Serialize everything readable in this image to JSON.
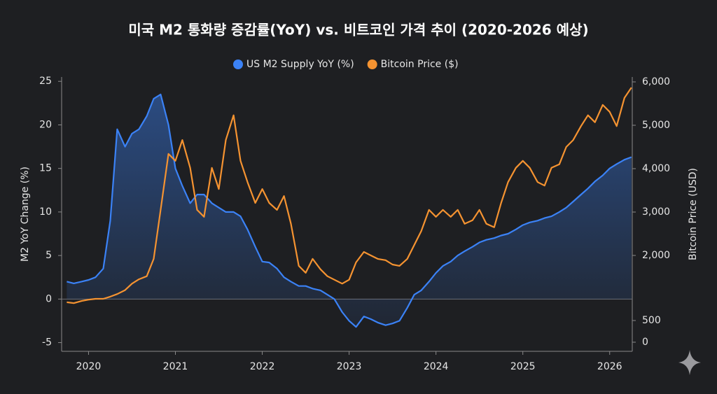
{
  "chart_data": {
    "type": "line",
    "title": "미국 M2 통화량 증감률(YoY) vs. 비트코인 가격 추이 (2020-2026 예상)",
    "ylabel": "M2 YoY Change (%)",
    "y2label": "Bitcoin Price (USD)",
    "legend": "top",
    "x": [
      2019.75,
      2019.83,
      2019.92,
      2020.0,
      2020.08,
      2020.17,
      2020.25,
      2020.33,
      2020.42,
      2020.5,
      2020.58,
      2020.67,
      2020.75,
      2020.83,
      2020.92,
      2021.0,
      2021.08,
      2021.17,
      2021.25,
      2021.33,
      2021.42,
      2021.5,
      2021.58,
      2021.67,
      2021.75,
      2021.83,
      2021.92,
      2022.0,
      2022.08,
      2022.17,
      2022.25,
      2022.33,
      2022.42,
      2022.5,
      2022.58,
      2022.67,
      2022.75,
      2022.83,
      2022.92,
      2023.0,
      2023.08,
      2023.17,
      2023.25,
      2023.33,
      2023.42,
      2023.5,
      2023.58,
      2023.67,
      2023.75,
      2023.83,
      2023.92,
      2024.0,
      2024.08,
      2024.17,
      2024.25,
      2024.33,
      2024.42,
      2024.5,
      2024.58,
      2024.67,
      2024.75,
      2024.83,
      2024.92,
      2025.0,
      2025.08,
      2025.17,
      2025.25,
      2025.33,
      2025.42,
      2025.5,
      2025.58,
      2025.67,
      2025.75,
      2025.83,
      2025.92,
      2026.0,
      2026.08,
      2026.17,
      2026.25
    ],
    "xlim": [
      2019.69,
      2026.26
    ],
    "xticks": [
      2020,
      2021,
      2022,
      2023,
      2024,
      2025,
      2026
    ],
    "ylim": [
      -6,
      25.5
    ],
    "yticks": [
      -5,
      0,
      5,
      10,
      15,
      20,
      25
    ],
    "y2lim": [
      -210,
      6113
    ],
    "y2ticks": [
      0,
      500,
      {
        "value": 2000,
        "label": "2,000"
      },
      {
        "value": 3000,
        "label": "3,000"
      },
      {
        "value": 4000,
        "label": "4,000"
      },
      {
        "value": 5000,
        "label": "5,000"
      },
      {
        "value": 6000,
        "label": "6,000"
      }
    ],
    "series": [
      {
        "name": "US M2 Supply YoY (%)",
        "color": "#3b82f6",
        "fill": true,
        "values": [
          2.0,
          1.8,
          2.0,
          2.2,
          2.5,
          3.5,
          9,
          19.5,
          17.5,
          19,
          19.5,
          21,
          23,
          23.5,
          20,
          15,
          13,
          11,
          12,
          12,
          11,
          10.5,
          10,
          10,
          9.5,
          8,
          6,
          4.3,
          4.2,
          3.5,
          2.5,
          2,
          1.5,
          1.5,
          1.2,
          1,
          0.5,
          0,
          -1.5,
          -2.5,
          -3.2,
          -2,
          -2.3,
          -2.7,
          -3,
          -2.8,
          -2.5,
          -1,
          0.5,
          1,
          2,
          3,
          3.8,
          4.3,
          5,
          5.5,
          6,
          6.5,
          6.8,
          7,
          7.3,
          7.5,
          8,
          8.5,
          8.8,
          9,
          9.3,
          9.5,
          10,
          10.5,
          11.2,
          12,
          12.7,
          13.5,
          14.2,
          15,
          15.5,
          16,
          16.3
        ]
      },
      {
        "name": "Bitcoin Price ($)",
        "color": "#f59331",
        "axis": "y2",
        "values": [
          920,
          900,
          950,
          980,
          1000,
          1000,
          1050,
          1110,
          1200,
          1350,
          1450,
          1520,
          1920,
          3050,
          4340,
          4180,
          4660,
          4020,
          3050,
          2890,
          4020,
          3530,
          4660,
          5230,
          4180,
          3690,
          3210,
          3530,
          3210,
          3050,
          3370,
          2730,
          1760,
          1600,
          1920,
          1680,
          1520,
          1440,
          1350,
          1440,
          1840,
          2080,
          2000,
          1920,
          1890,
          1790,
          1760,
          1920,
          2240,
          2560,
          3050,
          2890,
          3050,
          2890,
          3050,
          2730,
          2810,
          3050,
          2730,
          2650,
          3210,
          3690,
          4020,
          4180,
          4020,
          3690,
          3610,
          4020,
          4100,
          4500,
          4660,
          4980,
          5230,
          5070,
          5470,
          5310,
          4980,
          5630,
          5870
        ]
      }
    ]
  }
}
